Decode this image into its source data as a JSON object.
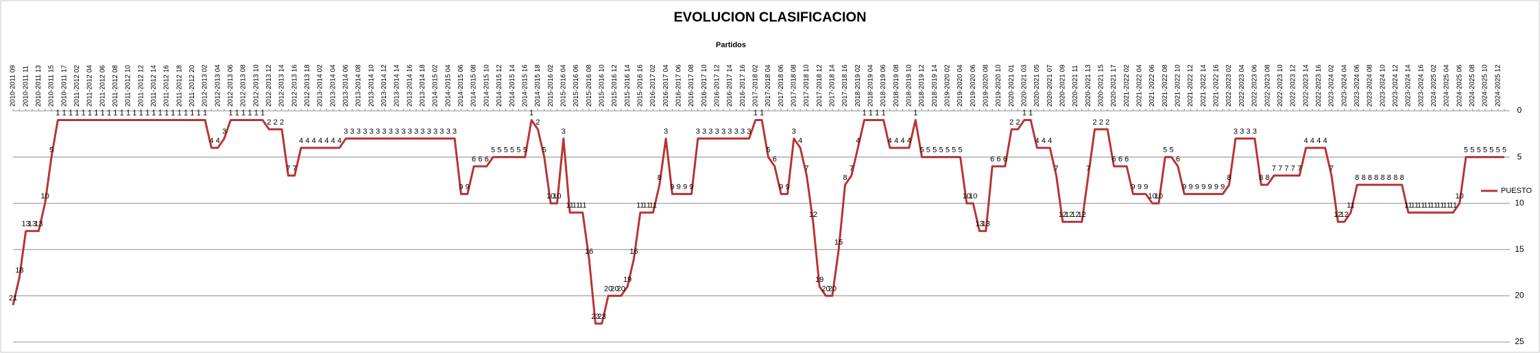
{
  "chart_data": {
    "type": "line",
    "title": "EVOLUCION CLASIFICACION",
    "x_label": "Partidos",
    "categories": [
      "2010-2011 09",
      null,
      "2010-2011 11",
      null,
      "2010-2011 13",
      null,
      "2010-2011 15",
      null,
      "2010-2011 17",
      null,
      "2011-2012 02",
      null,
      "2011-2012 04",
      null,
      "2011-2012 06",
      null,
      "2011-2012 08",
      null,
      "2011-2012 10",
      null,
      "2011-2012 12",
      null,
      "2011-2012 14",
      null,
      "2011-2012 16",
      null,
      "2011-2012 18",
      null,
      "2011-2012 20",
      null,
      "2012-2013 02",
      null,
      "2012-2013 04",
      null,
      "2012-2013 06",
      null,
      "2012-2013 08",
      null,
      "2012-2013 10",
      null,
      "2012-2013 12",
      null,
      "2012-2013 14",
      null,
      "2012-2013 16",
      null,
      "2012-2013 18",
      null,
      "2013-2014 02",
      null,
      "2013-2014 04",
      null,
      "2013-2014 06",
      null,
      "2013-2014 08",
      null,
      "2013-2014 10",
      null,
      "2013-2014 12",
      null,
      "2013-2014 14",
      null,
      "2013-2014 16",
      null,
      "2013-2014 18",
      null,
      "2014-2015 02",
      null,
      "2014-2015 04",
      null,
      "2014-2015 06",
      null,
      "2014-2015 08",
      null,
      "2014-2015 10",
      null,
      "2014-2015 12",
      null,
      "2014-2015 14",
      null,
      "2014-2015 16",
      null,
      "2014-2015 18",
      null,
      "2015-2016 02",
      null,
      "2015-2016 04",
      null,
      "2015-2016 06",
      null,
      "2015-2016 08",
      null,
      "2015-2016 10",
      null,
      "2015-2016 12",
      null,
      "2015-2016 14",
      null,
      "2015-2016 16",
      null,
      "2016-2017 02",
      null,
      "2016-2017 04",
      null,
      "2016-2017 06",
      null,
      "2016-2017 08",
      null,
      "2016-2017 10",
      null,
      "2016-2017 12",
      null,
      "2016-2017 14",
      null,
      "2016-2017 16",
      null,
      "2017-2018 02",
      null,
      "2017-2018 04",
      null,
      "2017-2018 06",
      null,
      "2017-2018 08",
      null,
      "2017-2018 10",
      null,
      "2017-2018 12",
      null,
      "2017-2018 14",
      null,
      "2017-2018 16",
      null,
      "2018-2019 02",
      null,
      "2018-2019 04",
      null,
      "2018-2019 06",
      null,
      "2018-2019 08",
      null,
      "2018-2019 10",
      null,
      "2018-2019 12",
      null,
      "2018-2019 14",
      null,
      "2019-2020 02",
      null,
      "2019-2020 04",
      null,
      "2019-2020 06",
      null,
      "2019-2020 08",
      null,
      "2019-2020 10",
      null,
      "2020-2021 01",
      null,
      "2020-2021 03",
      null,
      "2020-2021 05",
      null,
      "2020-2021 07",
      null,
      "2020-2021 09",
      null,
      "2020-2021 11",
      null,
      "2020-2021 13",
      null,
      "2020-2021 15",
      null,
      "2020-2021 17",
      null,
      "2021-2022 02",
      null,
      "2021-2022 04",
      null,
      "2021-2022 06",
      null,
      "2021-2022 08",
      null,
      "2021-2022 10",
      null,
      "2021-2022 12",
      null,
      "2021-2022 14",
      null,
      "2021-2022 16",
      null,
      "2022-2023 02",
      null,
      "2022-2023 04",
      null,
      "2022-2023 06",
      null,
      "2022-2023 08",
      null,
      "2022-2023 10",
      null,
      "2022-2023 12",
      null,
      "2022-2023 14",
      null,
      "2022-2023 16",
      null,
      "2023-2024 02",
      null,
      "2023-2024 04",
      null,
      "2023-2024 06",
      null,
      "2023-2024 08",
      null,
      "2023-2024 10",
      null,
      "2023-2024 12",
      null,
      "2023-2024 14",
      null,
      "2023-2024 16",
      null,
      "2024-2025 02",
      null,
      "2024-2025 04",
      null,
      "2024-2025 06",
      null,
      "2024-2025 08",
      null,
      "2024-2025 10",
      null,
      "2024-2025 12",
      null
    ],
    "series": [
      {
        "name": "PUESTO",
        "color": "#b83333",
        "values": [
          21,
          18,
          13,
          13,
          13,
          10,
          5,
          1,
          1,
          1,
          1,
          1,
          1,
          1,
          1,
          1,
          1,
          1,
          1,
          1,
          1,
          1,
          1,
          1,
          1,
          1,
          1,
          1,
          1,
          1,
          1,
          4,
          4,
          3,
          1,
          1,
          1,
          1,
          1,
          1,
          2,
          2,
          2,
          7,
          7,
          4,
          4,
          4,
          4,
          4,
          4,
          4,
          3,
          3,
          3,
          3,
          3,
          3,
          3,
          3,
          3,
          3,
          3,
          3,
          3,
          3,
          3,
          3,
          3,
          3,
          9,
          9,
          6,
          6,
          6,
          5,
          5,
          5,
          5,
          5,
          5,
          1,
          2,
          5,
          10,
          10,
          3,
          11,
          11,
          11,
          16,
          23,
          23,
          20,
          20,
          20,
          19,
          16,
          11,
          11,
          11,
          8,
          3,
          9,
          9,
          9,
          9,
          3,
          3,
          3,
          3,
          3,
          3,
          3,
          3,
          3,
          1,
          1,
          5,
          6,
          9,
          9,
          3,
          4,
          7,
          12,
          19,
          20,
          20,
          15,
          8,
          7,
          4,
          1,
          1,
          1,
          1,
          4,
          4,
          4,
          4,
          1,
          5,
          5,
          5,
          5,
          5,
          5,
          5,
          10,
          10,
          13,
          13,
          6,
          6,
          6,
          2,
          2,
          1,
          1,
          4,
          4,
          4,
          7,
          12,
          12,
          12,
          12,
          7,
          2,
          2,
          2,
          6,
          6,
          6,
          9,
          9,
          9,
          10,
          10,
          5,
          5,
          6,
          9,
          9,
          9,
          9,
          9,
          9,
          9,
          8,
          3,
          3,
          3,
          3,
          8,
          8,
          7,
          7,
          7,
          7,
          7,
          4,
          4,
          4,
          4,
          7,
          12,
          12,
          11,
          8,
          8,
          8,
          8,
          8,
          8,
          8,
          8,
          11,
          11,
          11,
          11,
          11,
          11,
          11,
          11,
          10,
          5,
          5,
          5,
          5,
          5,
          5,
          5
        ]
      }
    ],
    "ylim": [
      0,
      25
    ],
    "yticks": [
      0,
      5,
      10,
      15,
      20,
      25
    ],
    "y_inverted": true,
    "grid": true,
    "legend": "right",
    "data_labels": true
  }
}
